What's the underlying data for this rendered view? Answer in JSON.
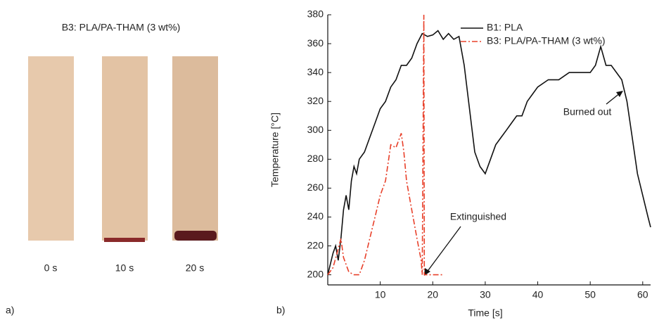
{
  "panel_a": {
    "title": "B3: PLA/PA-THAM (3 wt%)",
    "labels": [
      "0 s",
      "10 s",
      "20 s"
    ],
    "tag": "a)"
  },
  "chart_data": {
    "type": "line",
    "tag": "b)",
    "xlabel": "Time [s]",
    "ylabel": "Temperature [°C]",
    "xlim": [
      0,
      61.5
    ],
    "ylim": [
      193,
      380
    ],
    "xticks": [
      10,
      20,
      30,
      40,
      50,
      60
    ],
    "yticks": [
      200,
      220,
      240,
      260,
      280,
      300,
      320,
      340,
      360,
      380
    ],
    "legend": "upper right",
    "annotations": [
      "Extinguished",
      "Burned out"
    ],
    "series": [
      {
        "name": "B1: PLA",
        "color": "#111111",
        "style": "solid",
        "x": [
          0,
          1,
          1.5,
          2,
          2.5,
          3,
          3.5,
          4,
          4.5,
          5,
          5.5,
          6,
          7,
          8,
          9,
          10,
          11,
          12,
          13,
          14,
          15,
          16,
          17,
          18,
          19,
          20,
          21,
          22,
          23,
          24,
          25,
          26,
          27,
          28,
          29,
          30,
          31,
          32,
          33,
          34,
          35,
          36,
          37,
          38,
          39,
          40,
          42,
          44,
          46,
          48,
          50,
          51,
          52,
          53,
          54,
          55,
          56,
          57,
          58,
          59,
          60,
          61,
          61.5
        ],
        "values": [
          200,
          215,
          220,
          210,
          225,
          245,
          255,
          245,
          265,
          275,
          270,
          280,
          285,
          295,
          305,
          315,
          320,
          330,
          335,
          345,
          345,
          350,
          360,
          367,
          365,
          366,
          369,
          363,
          367,
          363,
          365,
          345,
          315,
          285,
          275,
          270,
          280,
          290,
          295,
          300,
          305,
          310,
          310,
          320,
          325,
          330,
          335,
          335,
          340,
          340,
          340,
          345,
          358,
          345,
          345,
          340,
          335,
          320,
          295,
          270,
          255,
          240,
          233
        ]
      },
      {
        "name": "B3: PLA/PA-THAM (3 wt%)",
        "color": "#e8402a",
        "style": "dashdot",
        "x": [
          0,
          1,
          2,
          2.5,
          3,
          4,
          5,
          6,
          7,
          8,
          9,
          10,
          11,
          12,
          13,
          14,
          14.5,
          15,
          16,
          17,
          17.8,
          18,
          18.3,
          18.4,
          20,
          22
        ],
        "values": [
          200,
          205,
          218,
          225,
          212,
          202,
          200,
          200,
          210,
          225,
          240,
          255,
          265,
          290,
          288,
          298,
          285,
          265,
          245,
          225,
          210,
          200,
          380,
          200,
          200,
          200
        ]
      }
    ]
  }
}
